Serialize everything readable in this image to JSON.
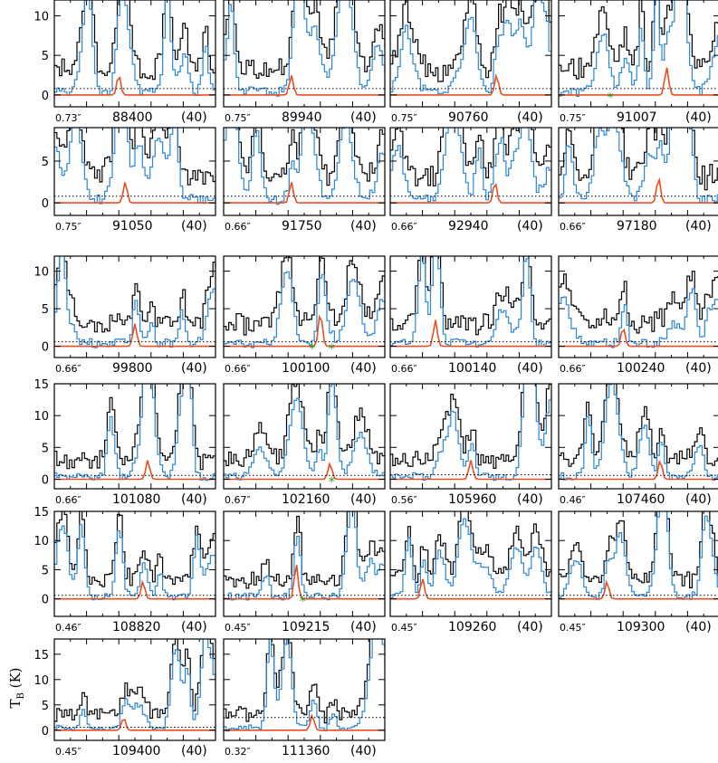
{
  "colors": {
    "observed": "#000000",
    "model_all": "#2a86d6",
    "model_species": "#e84f22",
    "marker": "#1a9a1a",
    "noise": "#000000"
  },
  "y_axis_title": "T",
  "y_axis_title_sub": "B",
  "y_axis_title_unit": "(K)",
  "chart_data": {
    "type": "line",
    "layout": "grid of spectral panels, 4 columns",
    "panels": [
      {
        "freq": "88400",
        "label_suffix": "(40)",
        "beam": "0.73″",
        "ylim": [
          -1.5,
          12
        ],
        "yticks": [
          0,
          5,
          10
        ],
        "noise": 0.8,
        "peak": 2.5,
        "peak_pos": 0.4,
        "markers": []
      },
      {
        "freq": "89940",
        "label_suffix": "(40)",
        "beam": "0.75″",
        "ylim": [
          -1.5,
          12
        ],
        "yticks": [
          0,
          5,
          10
        ],
        "noise": 0.8,
        "peak": 2.5,
        "peak_pos": 0.42,
        "markers": []
      },
      {
        "freq": "90760",
        "label_suffix": "(40)",
        "beam": "0.75″",
        "ylim": [
          -1.5,
          12
        ],
        "yticks": [
          0,
          5,
          10
        ],
        "noise": 0.8,
        "peak": 2.5,
        "peak_pos": 0.66,
        "markers": []
      },
      {
        "freq": "91007",
        "label_suffix": "(40)",
        "beam": "0.75″",
        "ylim": [
          -1.5,
          12
        ],
        "yticks": [
          0,
          5,
          10
        ],
        "noise": 0.8,
        "peak": 3.5,
        "peak_pos": 0.67,
        "markers": [
          0.32
        ]
      },
      {
        "freq": "91050",
        "label_suffix": "(40)",
        "beam": "0.75″",
        "ylim": [
          -1.5,
          9
        ],
        "yticks": [
          0,
          5
        ],
        "noise": 0.8,
        "peak": 2.5,
        "peak_pos": 0.44,
        "markers": []
      },
      {
        "freq": "91750",
        "label_suffix": "(40)",
        "beam": "0.66″",
        "ylim": [
          -1.5,
          9
        ],
        "yticks": [
          0,
          5
        ],
        "noise": 0.8,
        "peak": 2.5,
        "peak_pos": 0.42,
        "markers": []
      },
      {
        "freq": "92940",
        "label_suffix": "(40)",
        "beam": "0.66″",
        "ylim": [
          -1.5,
          9
        ],
        "yticks": [
          0,
          5
        ],
        "noise": 0.8,
        "peak": 2.5,
        "peak_pos": 0.65,
        "markers": []
      },
      {
        "freq": "97180",
        "label_suffix": "(40)",
        "beam": "0.66″",
        "ylim": [
          -1.5,
          9
        ],
        "yticks": [
          0,
          5
        ],
        "noise": 0.8,
        "peak": 3.0,
        "peak_pos": 0.62,
        "markers": []
      },
      {
        "freq": "99800",
        "label_suffix": "(40)",
        "beam": "0.66″",
        "ylim": [
          -1.5,
          12
        ],
        "yticks": [
          0,
          5,
          10
        ],
        "noise": 0.6,
        "peak": 3.0,
        "peak_pos": 0.5,
        "markers": []
      },
      {
        "freq": "100100",
        "label_suffix": "(40)",
        "beam": "0.66″",
        "ylim": [
          -1.5,
          12
        ],
        "yticks": [
          0,
          5,
          10
        ],
        "noise": 0.6,
        "peak": 4.5,
        "peak_pos": 0.6,
        "markers": [
          0.55,
          0.67
        ]
      },
      {
        "freq": "100140",
        "label_suffix": "(40)",
        "beam": "0.66″",
        "ylim": [
          -1.5,
          12
        ],
        "yticks": [
          0,
          5,
          10
        ],
        "noise": 0.6,
        "peak": 3.5,
        "peak_pos": 0.28,
        "markers": []
      },
      {
        "freq": "100240",
        "label_suffix": "(40)",
        "beam": "0.66″",
        "ylim": [
          -1.5,
          12
        ],
        "yticks": [
          0,
          5,
          10
        ],
        "noise": 0.6,
        "peak": 2.5,
        "peak_pos": 0.4,
        "markers": []
      },
      {
        "freq": "101080",
        "label_suffix": "(40)",
        "beam": "0.66″",
        "ylim": [
          -1.5,
          15
        ],
        "yticks": [
          0,
          5,
          10,
          15
        ],
        "noise": 0.6,
        "peak": 3.0,
        "peak_pos": 0.58,
        "markers": []
      },
      {
        "freq": "102160",
        "label_suffix": "(40)",
        "beam": "0.67″",
        "ylim": [
          -1.5,
          15
        ],
        "yticks": [
          0,
          5,
          10,
          15
        ],
        "noise": 0.6,
        "peak": 2.5,
        "peak_pos": 0.66,
        "markers": [
          0.67
        ]
      },
      {
        "freq": "105960",
        "label_suffix": "(40)",
        "beam": "0.56″",
        "ylim": [
          -1.5,
          15
        ],
        "yticks": [
          0,
          5,
          10,
          15
        ],
        "noise": 0.7,
        "peak": 3.0,
        "peak_pos": 0.5,
        "markers": []
      },
      {
        "freq": "107460",
        "label_suffix": "(40)",
        "beam": "0.46″",
        "ylim": [
          -1.5,
          15
        ],
        "yticks": [
          0,
          5,
          10,
          15
        ],
        "noise": 0.6,
        "peak": 3.0,
        "peak_pos": 0.63,
        "markers": []
      },
      {
        "freq": "108820",
        "label_suffix": "(40)",
        "beam": "0.46″",
        "ylim": [
          -3,
          15
        ],
        "yticks": [
          0,
          5,
          10,
          15
        ],
        "noise": 0.6,
        "peak": 3.0,
        "peak_pos": 0.55,
        "markers": []
      },
      {
        "freq": "109215",
        "label_suffix": "(40)",
        "beam": "0.45″",
        "ylim": [
          -3,
          15
        ],
        "yticks": [
          0,
          5,
          10,
          15
        ],
        "noise": 0.6,
        "peak": 6.0,
        "peak_pos": 0.45,
        "markers": [
          0.49
        ]
      },
      {
        "freq": "109260",
        "label_suffix": "(40)",
        "beam": "0.45″",
        "ylim": [
          -3,
          15
        ],
        "yticks": [
          0,
          5,
          10,
          15
        ],
        "noise": 0.6,
        "peak": 3.5,
        "peak_pos": 0.2,
        "markers": []
      },
      {
        "freq": "109300",
        "label_suffix": "(40)",
        "beam": "0.45″",
        "ylim": [
          -3,
          15
        ],
        "yticks": [
          0,
          5,
          10,
          15
        ],
        "noise": 0.6,
        "peak": 3.0,
        "peak_pos": 0.3,
        "markers": []
      },
      {
        "freq": "109400",
        "label_suffix": "(40)",
        "beam": "0.45″",
        "ylim": [
          -2,
          18
        ],
        "yticks": [
          0,
          5,
          10,
          15
        ],
        "noise": 0.6,
        "peak": 2.5,
        "peak_pos": 0.43,
        "markers": []
      },
      {
        "freq": "111360",
        "label_suffix": "(40)",
        "beam": "0.32″",
        "ylim": [
          -2,
          18
        ],
        "yticks": [
          0,
          5,
          10,
          15
        ],
        "noise": 2.5,
        "peak": 3.0,
        "peak_pos": 0.55,
        "markers": []
      }
    ]
  }
}
